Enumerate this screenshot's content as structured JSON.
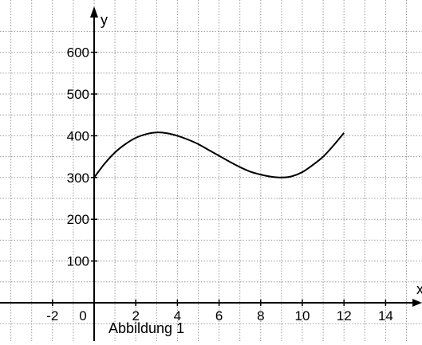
{
  "chart_data": {
    "type": "line",
    "xlabel": "x",
    "ylabel": "y",
    "caption": "Abbildung 1",
    "xlim": [
      -4,
      16
    ],
    "ylim": [
      -90,
      690
    ],
    "grid": true,
    "x_tick_labels": [
      {
        "value": -2,
        "label": "-2"
      },
      {
        "value": 0,
        "label": "0"
      },
      {
        "value": 2,
        "label": "2"
      },
      {
        "value": 4,
        "label": "4"
      },
      {
        "value": 6,
        "label": "6"
      },
      {
        "value": 8,
        "label": "8"
      },
      {
        "value": 10,
        "label": "10"
      },
      {
        "value": 12,
        "label": "12"
      },
      {
        "value": 14,
        "label": "14"
      }
    ],
    "y_tick_labels": [
      {
        "value": 100,
        "label": "100"
      },
      {
        "value": 200,
        "label": "200"
      },
      {
        "value": 300,
        "label": "300"
      },
      {
        "value": 400,
        "label": "400"
      },
      {
        "value": 500,
        "label": "500"
      },
      {
        "value": 600,
        "label": "600"
      }
    ],
    "series": [
      {
        "x": [
          0,
          0.5,
          1,
          1.5,
          2,
          2.5,
          3,
          3.5,
          4,
          4.5,
          5,
          5.5,
          6,
          6.5,
          7,
          7.5,
          8,
          8.5,
          9,
          9.5,
          10,
          10.5,
          11,
          11.5,
          12
        ],
        "y": [
          300,
          333,
          360,
          380,
          395,
          404,
          408,
          406,
          400,
          391,
          380,
          366,
          352,
          338,
          325,
          314,
          307,
          302,
          300,
          303,
          313,
          330,
          350,
          377,
          407
        ],
        "color": "#000000"
      }
    ]
  }
}
